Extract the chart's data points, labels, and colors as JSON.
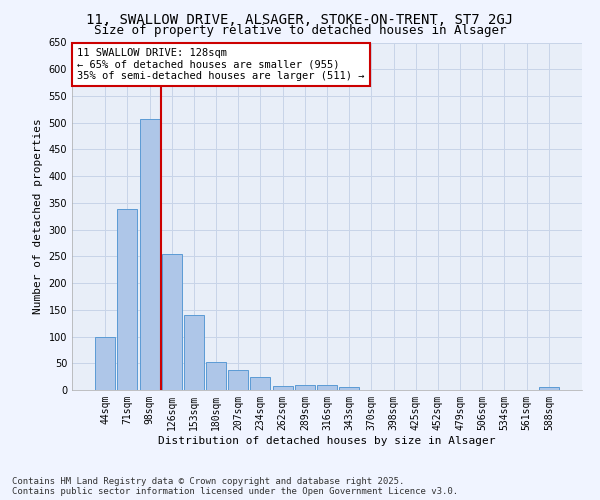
{
  "title": "11, SWALLOW DRIVE, ALSAGER, STOKE-ON-TRENT, ST7 2GJ",
  "subtitle": "Size of property relative to detached houses in Alsager",
  "xlabel": "Distribution of detached houses by size in Alsager",
  "ylabel": "Number of detached properties",
  "categories": [
    "44sqm",
    "71sqm",
    "98sqm",
    "126sqm",
    "153sqm",
    "180sqm",
    "207sqm",
    "234sqm",
    "262sqm",
    "289sqm",
    "316sqm",
    "343sqm",
    "370sqm",
    "398sqm",
    "425sqm",
    "452sqm",
    "479sqm",
    "506sqm",
    "534sqm",
    "561sqm",
    "588sqm"
  ],
  "values": [
    100,
    338,
    507,
    254,
    140,
    53,
    37,
    25,
    8,
    10,
    10,
    6,
    0,
    0,
    0,
    0,
    0,
    0,
    0,
    0,
    5
  ],
  "bar_color": "#aec6e8",
  "bar_edge_color": "#5b9bd5",
  "vline_color": "#cc0000",
  "annotation_text": "11 SWALLOW DRIVE: 128sqm\n← 65% of detached houses are smaller (955)\n35% of semi-detached houses are larger (511) →",
  "annotation_box_color": "#ffffff",
  "annotation_box_edge_color": "#cc0000",
  "ylim": [
    0,
    650
  ],
  "yticks": [
    0,
    50,
    100,
    150,
    200,
    250,
    300,
    350,
    400,
    450,
    500,
    550,
    600,
    650
  ],
  "background_color": "#f0f4ff",
  "plot_bg_color": "#e8eef8",
  "grid_color": "#c8d4e8",
  "footer_text": "Contains HM Land Registry data © Crown copyright and database right 2025.\nContains public sector information licensed under the Open Government Licence v3.0.",
  "title_fontsize": 10,
  "subtitle_fontsize": 9,
  "axis_label_fontsize": 8,
  "tick_fontsize": 7,
  "annotation_fontsize": 7.5,
  "footer_fontsize": 6.5
}
